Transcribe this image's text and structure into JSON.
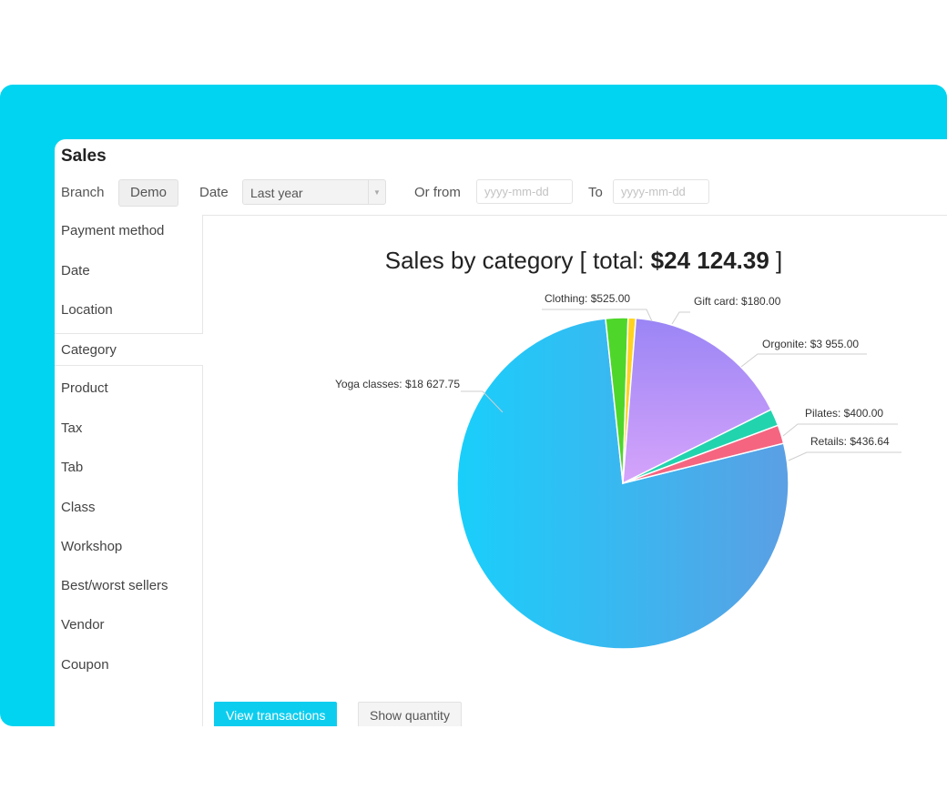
{
  "page": {
    "title": "Sales"
  },
  "filters": {
    "branch_label": "Branch",
    "branch_value": "Demo",
    "date_label": "Date",
    "date_value": "Last year",
    "from_label": "Or from",
    "from_placeholder": "yyyy-mm-dd",
    "to_label": "To",
    "to_placeholder": "yyyy-mm-dd"
  },
  "sidebar": {
    "items": [
      {
        "label": "Payment method"
      },
      {
        "label": "Date"
      },
      {
        "label": "Location"
      },
      {
        "label": "Category",
        "active": true
      },
      {
        "label": "Product"
      },
      {
        "label": "Tax"
      },
      {
        "label": "Tab"
      },
      {
        "label": "Class"
      },
      {
        "label": "Workshop"
      },
      {
        "label": "Best/worst sellers"
      },
      {
        "label": "Vendor"
      },
      {
        "label": "Coupon"
      }
    ]
  },
  "actions": {
    "view_transactions": "View transactions",
    "show_quantity": "Show quantity"
  },
  "colors": {
    "frame": "#00d4f0",
    "primary_button": "#0dcdef"
  },
  "chart_data": {
    "type": "pie",
    "title_prefix": "Sales by category [ total: ",
    "title_total": "$24 124.39",
    "title_suffix": " ]",
    "slices": [
      {
        "name": "Yoga classes",
        "label": "Yoga classes: $18 627.75",
        "value": 18627.75,
        "color": "#2bc6f7"
      },
      {
        "name": "Clothing",
        "label": "Clothing: $525.00",
        "value": 525.0,
        "color": "#4fd62a"
      },
      {
        "name": "Gift card",
        "label": "Gift card: $180.00",
        "value": 180.0,
        "color": "#ffd21f"
      },
      {
        "name": "Orgonite",
        "label": "Orgonite: $3 955.00",
        "value": 3955.0,
        "color": "#b48cf7"
      },
      {
        "name": "Pilates",
        "label": "Pilates: $400.00",
        "value": 400.0,
        "color": "#22d4ae"
      },
      {
        "name": "Retails",
        "label": "Retails: $436.64",
        "value": 436.64,
        "color": "#f56580"
      }
    ]
  }
}
